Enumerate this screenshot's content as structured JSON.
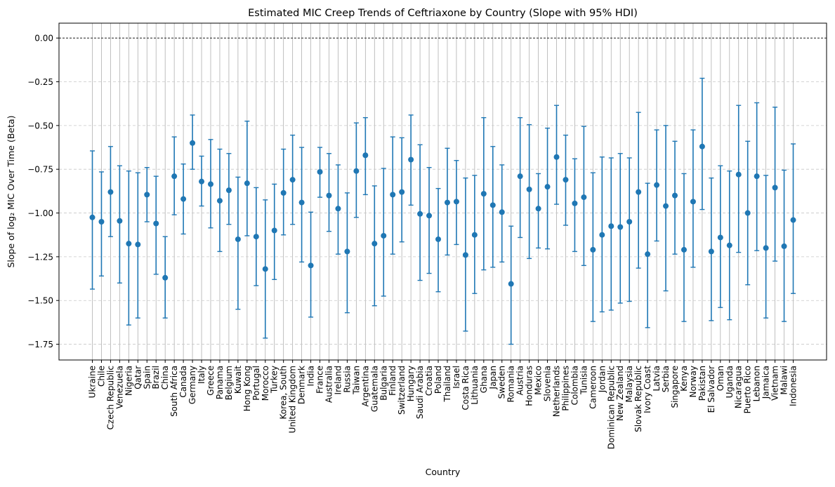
{
  "chart_data": {
    "type": "scatter",
    "title": "Estimated MIC Creep Trends of Ceftriaxone by Country (Slope with 95% HDI)",
    "xlabel": "Country",
    "ylabel": "Slope of log₂ MIC Over Time (Beta)",
    "ylim": [
      -1.84,
      0.085
    ],
    "yticks": [
      0.0,
      -0.25,
      -0.5,
      -0.75,
      -1.0,
      -1.25,
      -1.5,
      -1.75
    ],
    "ytick_labels": [
      "0.00",
      "−0.25",
      "−0.50",
      "−0.75",
      "−1.00",
      "−1.25",
      "−1.50",
      "−1.75"
    ],
    "reference_line": 0.0,
    "grid": "y dashed; x solid gray",
    "colors": {
      "series": "#1f77b4",
      "grid": "#c8c8c8",
      "xgrid": "#b0b0b0",
      "reference": "#000000"
    },
    "categories": [
      "Ukraine",
      "Chile",
      "Czech Republic",
      "Venezuela",
      "Nigeria",
      "Qatar",
      "Spain",
      "Brazil",
      "China",
      "South Africa",
      "Canada",
      "Germany",
      "Italy",
      "Greece",
      "Panama",
      "Belgium",
      "Kuwait",
      "Hong Kong",
      "Portugal",
      "Morocco",
      "Turkey",
      "Korea, South",
      "United Kingdom",
      "Denmark",
      "India",
      "France",
      "Australia",
      "Ireland",
      "Russia",
      "Taiwan",
      "Argentina",
      "Guatemala",
      "Bulgaria",
      "Finland",
      "Switzerland",
      "Hungary",
      "Saudi Arabia",
      "Croatia",
      "Poland",
      "Thailand",
      "Israel",
      "Costa Rica",
      "Lithuania",
      "Ghana",
      "Japan",
      "Sweden",
      "Romania",
      "Austria",
      "Honduras",
      "Mexico",
      "Slovenia",
      "Netherlands",
      "Philippines",
      "Colombia",
      "Tunisia",
      "Cameroon",
      "Jordan",
      "Dominican Republic",
      "New Zealand",
      "Malaysia",
      "Slovak Republic",
      "Ivory Coast",
      "Latvia",
      "Serbia",
      "Singapore",
      "Kenya",
      "Norway",
      "Pakistan",
      "El Salvador",
      "Oman",
      "Uganda",
      "Nicaragua",
      "Puerto Rico",
      "Lebanon",
      "Jamaica",
      "Vietnam",
      "Malawi",
      "Indonesia"
    ],
    "series": [
      {
        "values": [
          -1.025,
          -1.05,
          -0.88,
          -1.045,
          -1.175,
          -1.18,
          -0.895,
          -1.06,
          -1.37,
          -0.79,
          -0.92,
          -0.6,
          -0.82,
          -0.835,
          -0.93,
          -0.87,
          -1.15,
          -0.83,
          -1.135,
          -1.32,
          -1.1,
          -0.885,
          -0.81,
          -0.94,
          -1.3,
          -0.765,
          -0.9,
          -0.975,
          -1.22,
          -0.76,
          -0.67,
          -1.175,
          -1.13,
          -0.895,
          -0.88,
          -0.695,
          -1.005,
          -1.015,
          -1.15,
          -0.94,
          -0.935,
          -1.24,
          -1.125,
          -0.89,
          -0.955,
          -0.995,
          -1.405,
          -0.79,
          -0.865,
          -0.975,
          -0.85,
          -0.68,
          -0.81,
          -0.945,
          -0.91,
          -1.21,
          -1.125,
          -1.075,
          -1.08,
          -1.05,
          -0.88,
          -1.235,
          -0.84,
          -0.96,
          -0.9,
          -1.21,
          -0.935,
          -0.62,
          -1.22,
          -1.14,
          -1.185,
          -0.78,
          -1.0,
          -0.79,
          -1.2,
          -0.855,
          -1.19,
          -1.04
        ],
        "lower": [
          -1.435,
          -1.36,
          -1.135,
          -1.4,
          -1.64,
          -1.6,
          -1.05,
          -1.35,
          -1.6,
          -1.01,
          -1.12,
          -0.75,
          -0.96,
          -1.085,
          -1.22,
          -1.065,
          -1.55,
          -1.13,
          -1.415,
          -1.715,
          -1.38,
          -1.125,
          -1.065,
          -1.28,
          -1.595,
          -0.91,
          -1.105,
          -1.235,
          -1.57,
          -1.025,
          -0.895,
          -1.53,
          -1.475,
          -1.235,
          -1.165,
          -0.955,
          -1.385,
          -1.345,
          -1.45,
          -1.24,
          -1.18,
          -1.675,
          -1.46,
          -1.325,
          -1.31,
          -1.28,
          -1.75,
          -1.14,
          -1.26,
          -1.2,
          -1.205,
          -0.95,
          -1.07,
          -1.22,
          -1.3,
          -1.62,
          -1.565,
          -1.555,
          -1.515,
          -1.505,
          -1.315,
          -1.655,
          -1.16,
          -1.445,
          -1.235,
          -1.62,
          -1.31,
          -0.98,
          -1.615,
          -1.54,
          -1.61,
          -1.225,
          -1.41,
          -1.215,
          -1.6,
          -1.275,
          -1.62,
          -1.46
        ],
        "upper": [
          -0.645,
          -0.765,
          -0.62,
          -0.73,
          -0.76,
          -0.77,
          -0.74,
          -0.79,
          -1.135,
          -0.565,
          -0.72,
          -0.44,
          -0.675,
          -0.58,
          -0.635,
          -0.66,
          -0.795,
          -0.475,
          -0.855,
          -0.925,
          -0.835,
          -0.635,
          -0.555,
          -0.625,
          -0.995,
          -0.625,
          -0.66,
          -0.725,
          -0.885,
          -0.485,
          -0.455,
          -0.845,
          -0.745,
          -0.565,
          -0.57,
          -0.44,
          -0.61,
          -0.74,
          -0.86,
          -0.63,
          -0.7,
          -0.8,
          -0.785,
          -0.455,
          -0.62,
          -0.725,
          -1.075,
          -0.455,
          -0.495,
          -0.775,
          -0.515,
          -0.385,
          -0.555,
          -0.69,
          -0.505,
          -0.77,
          -0.68,
          -0.685,
          -0.66,
          -0.685,
          -0.425,
          -0.83,
          -0.525,
          -0.5,
          -0.59,
          -0.775,
          -0.525,
          -0.23,
          -0.8,
          -0.73,
          -0.76,
          -0.385,
          -0.59,
          -0.37,
          -0.785,
          -0.395,
          -0.755,
          -0.605
        ]
      }
    ]
  }
}
